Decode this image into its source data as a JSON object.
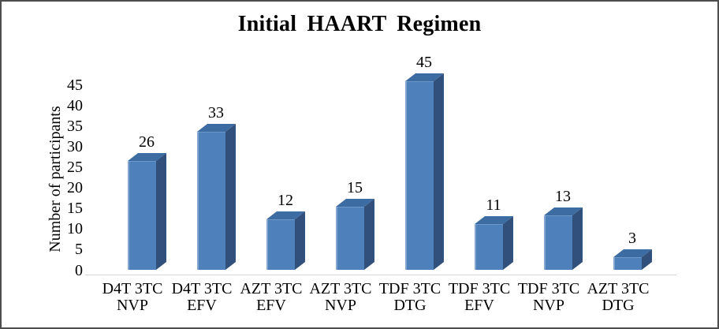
{
  "chart_data": {
    "type": "bar",
    "variant": "3d-clustered-column",
    "title": "Initial HAART Regimen",
    "xlabel": "",
    "ylabel": "Number of participants",
    "ylim": [
      0,
      45
    ],
    "yticks": [
      0,
      5,
      10,
      15,
      20,
      25,
      30,
      35,
      40,
      45
    ],
    "grid": false,
    "legend": "none",
    "categories": [
      {
        "line1": "D4T 3TC",
        "line2": "NVP"
      },
      {
        "line1": "D4T 3TC",
        "line2": "EFV"
      },
      {
        "line1": "AZT 3TC",
        "line2": "EFV"
      },
      {
        "line1": "AZT 3TC",
        "line2": "NVP"
      },
      {
        "line1": "TDF 3TC",
        "line2": "DTG"
      },
      {
        "line1": "TDF 3TC",
        "line2": "EFV"
      },
      {
        "line1": "TDF 3TC",
        "line2": "NVP"
      },
      {
        "line1": "AZT 3TC",
        "line2": "DTG"
      }
    ],
    "values": [
      26,
      33,
      12,
      15,
      45,
      11,
      13,
      3
    ],
    "data_labels_shown": true,
    "colors": {
      "bar_front": "#4e80bc",
      "bar_top": "#3d6ca3",
      "bar_side": "#31507b",
      "axis_line": "#d6d6d6",
      "text": "#000000",
      "frame_border": "#4d4d4d",
      "background": "#ffffff"
    }
  }
}
